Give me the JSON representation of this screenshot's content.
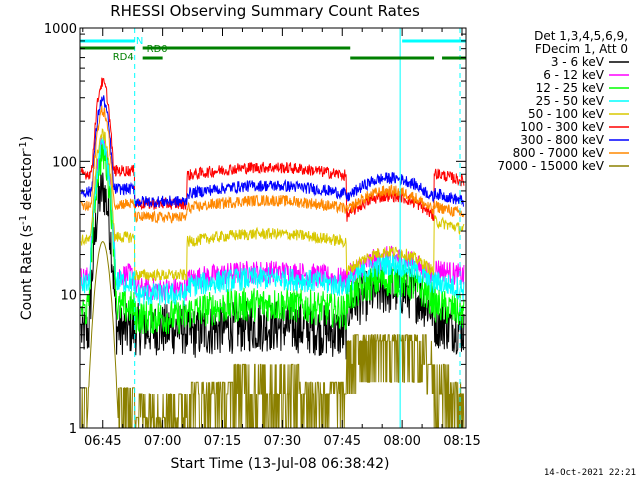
{
  "chart_data": {
    "type": "line",
    "title": "RHESSI Observing Summary Count Rates",
    "xlabel": "Start Time (13-Jul-08 06:38:42)",
    "ylabel_main": "Count Rate (s",
    "ylabel_sup1": "-1",
    "ylabel_mid": " detector",
    "ylabel_sup2": "-1",
    "ylabel_end": ")",
    "yscale": "log",
    "ylim": [
      1,
      1000
    ],
    "xlim_minutes": [
      -5.7,
      91.0
    ],
    "x_ticks": [
      {
        "label": "06:45",
        "minute": 0
      },
      {
        "label": "07:00",
        "minute": 15
      },
      {
        "label": "07:15",
        "minute": 30
      },
      {
        "label": "07:30",
        "minute": 45
      },
      {
        "label": "07:45",
        "minute": 60
      },
      {
        "label": "08:00",
        "minute": 75
      },
      {
        "label": "08:15",
        "minute": 90
      }
    ],
    "y_ticks": [
      {
        "label": "1",
        "value": 1
      },
      {
        "label": "10",
        "value": 10
      },
      {
        "label": "100",
        "value": 100
      },
      {
        "label": "1000",
        "value": 1000
      }
    ],
    "legend_header": [
      "Det 1,3,4,5,6,9,",
      "FDecim 1, Att 0"
    ],
    "legend_position": "right",
    "series": [
      {
        "name": "3 - 6 keV",
        "color": "#000000",
        "peak": 60,
        "quiet": 5.5,
        "night": 5.5,
        "hump": 11,
        "late": 6,
        "noise": 0.09
      },
      {
        "name": "6 - 12 keV",
        "color": "#ff00ff",
        "peak": 130,
        "quiet": 14,
        "night": 11,
        "hump": 19,
        "late": 15,
        "noise": 0.04
      },
      {
        "name": "12 - 25 keV",
        "color": "#00ff00",
        "peak": 110,
        "quiet": 8,
        "night": 6.8,
        "hump": 13,
        "late": 8,
        "noise": 0.06
      },
      {
        "name": "25 - 50 keV",
        "color": "#00ffff",
        "peak": 125,
        "quiet": 12.5,
        "night": 10,
        "hump": 17,
        "late": 12,
        "noise": 0.04
      },
      {
        "name": "50 - 100 keV",
        "color": "#d8c800",
        "peak": 160,
        "quiet": 27,
        "night": 14,
        "hump": 21,
        "late": 34,
        "noise": 0.02
      },
      {
        "name": "100 - 300 keV",
        "color": "#ff0000",
        "peak": 390,
        "quiet": 85,
        "night": 48,
        "hump": 55,
        "late": 78,
        "noise": 0.02
      },
      {
        "name": "300 - 800 keV",
        "color": "#0000ff",
        "peak": 290,
        "quiet": 62,
        "night": 50,
        "hump": 75,
        "late": 55,
        "noise": 0.02
      },
      {
        "name": "800 - 7000 keV",
        "color": "#ff8800",
        "peak": 240,
        "quiet": 48,
        "night": 38,
        "hump": 60,
        "late": 44,
        "noise": 0.02
      },
      {
        "name": "7000 - 15000 keV",
        "color": "#8b8000",
        "peak": 25,
        "quiet": 1.8,
        "night": 1.2,
        "hump": 4.5,
        "late": 1.9,
        "noise": 0.0
      }
    ],
    "flag_labels": {
      "n": "N",
      "rd0": "RD0",
      "rd4": "RD4"
    },
    "flags": [
      {
        "key": "n",
        "color": "#00ffff",
        "segments": [
          [
            -5.7,
            8
          ],
          [
            75,
            91
          ]
        ],
        "level": 1
      },
      {
        "key": "rd0",
        "color": "#008000",
        "segments": [
          [
            -5.7,
            8
          ],
          [
            10,
            62
          ]
        ],
        "level": 2
      },
      {
        "key": "rd4",
        "color": "#008000",
        "segments": [
          [
            10,
            15
          ]
        ],
        "level": 3
      },
      {
        "key": "rd0",
        "color": "#008000",
        "segments": [
          [
            62,
            83
          ],
          [
            85,
            91
          ]
        ],
        "level": 3
      }
    ],
    "night_intervals": [
      [
        8,
        21
      ],
      [
        61,
        83
      ]
    ],
    "vlines": [
      {
        "minute": 8,
        "color": "#00ffff",
        "dashed": true
      },
      {
        "minute": 74.5,
        "color": "#00ffff",
        "dashed": false
      },
      {
        "minute": 89.5,
        "color": "#00ffff",
        "dashed": true
      }
    ]
  },
  "footer": {
    "date": "14-Oct-2021 22:21"
  }
}
